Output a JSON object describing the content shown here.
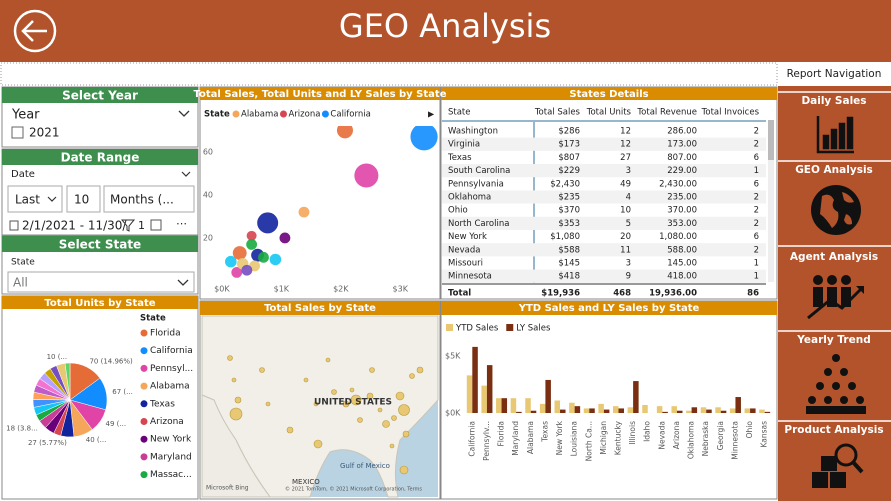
{
  "header": {
    "title": "GEO Analysis"
  },
  "navigation": {
    "title": "Report Navigation",
    "items": [
      "Daily Sales",
      "GEO Analysis",
      "Agent Analysis",
      "Yearly Trend",
      "Product Analysis"
    ]
  },
  "filters": {
    "year": {
      "title": "Select Year",
      "field": "Year",
      "option": "2021"
    },
    "date_range": {
      "title": "Date Range",
      "field": "Date",
      "mode": "Last",
      "count": "10",
      "unit": "Months (...",
      "range": "2/1/2021 - 11/30/",
      "filter_count": "1"
    },
    "state": {
      "title": "Select State",
      "field": "State",
      "value": "All"
    }
  },
  "map": {
    "title": "Total Sales by State",
    "labels": [
      "UNITED STATES",
      "MEXICO",
      "Gulf of Mexico"
    ],
    "credit": "Microsoft Bing",
    "copyright": "© 2021 TomTom, © 2021 Microsoft Corporation, Terms"
  },
  "table": {
    "title": "States Details",
    "columns": [
      "State",
      "Total Sales",
      "Total Units",
      "Total Revenue",
      "Total Invoices"
    ],
    "rows": [
      [
        "Washington",
        "$286",
        "12",
        "286.00",
        "2"
      ],
      [
        "Virginia",
        "$173",
        "12",
        "173.00",
        "2"
      ],
      [
        "Texas",
        "$807",
        "27",
        "807.00",
        "6"
      ],
      [
        "South Carolina",
        "$229",
        "3",
        "229.00",
        "1"
      ],
      [
        "Pennsylvania",
        "$2,430",
        "49",
        "2,430.00",
        "6"
      ],
      [
        "Oklahoma",
        "$235",
        "4",
        "235.00",
        "2"
      ],
      [
        "Ohio",
        "$370",
        "10",
        "370.00",
        "2"
      ],
      [
        "North Carolina",
        "$353",
        "5",
        "353.00",
        "2"
      ],
      [
        "New York",
        "$1,080",
        "20",
        "1,080.00",
        "6"
      ],
      [
        "Nevada",
        "$588",
        "11",
        "588.00",
        "2"
      ],
      [
        "Missouri",
        "$145",
        "3",
        "145.00",
        "1"
      ],
      [
        "Minnesota",
        "$418",
        "9",
        "418.00",
        "1"
      ]
    ],
    "total": [
      "Total",
      "$19,936",
      "468",
      "19,936.00",
      "86"
    ]
  },
  "chart_data": [
    {
      "type": "pie",
      "title": "Total Units by State",
      "legend_title": "State",
      "categories": [
        "Florida",
        "California",
        "Pennsyl...",
        "Alabama",
        "Texas",
        "Arizona",
        "New York",
        "Maryland",
        "Massac...",
        null,
        null,
        null,
        null,
        null,
        null,
        null,
        null,
        null,
        null
      ],
      "values": [
        70,
        67,
        49,
        40,
        27,
        15,
        20,
        18,
        14,
        16,
        16,
        15,
        15,
        15,
        15,
        14,
        14,
        18,
        10
      ],
      "value_labels": [
        "70 (14.96%)",
        "67 (...",
        "49 (...",
        "40 (...",
        "27 (5.77%)",
        null,
        null,
        "18 (3.8...",
        null,
        null,
        null,
        null,
        null,
        null,
        null,
        null,
        null,
        null,
        "10 (..."
      ],
      "colors": [
        "#e66c37",
        "#118dff",
        "#e044a7",
        "#f5a65a",
        "#12239e",
        "#d64550",
        "#6b007b",
        "#c83d95",
        "#1aab40",
        "#15c6f4",
        "#4092ff",
        "#ffa058",
        "#be5dc9",
        "#f472d0",
        "#b5a1ff",
        "#c4a200",
        "#744ec2",
        "#e8c872",
        "#5bd667"
      ]
    },
    {
      "type": "scatter",
      "title": "Total Sales, Total Units and LY Sales by State",
      "legend_title": "State",
      "xlim": [
        -0.2,
        3.5
      ],
      "ylim": [
        0,
        72
      ],
      "xticks": [
        {
          "value": 0,
          "label": "$0K"
        },
        {
          "value": 1,
          "label": "$1K"
        },
        {
          "value": 2,
          "label": "$2K"
        },
        {
          "value": 3,
          "label": "$3K"
        }
      ],
      "yticks": [
        20,
        40,
        60
      ],
      "series": [
        {
          "name": "Alabama",
          "color": "#f5a65a",
          "x": [
            1.38
          ],
          "values": [
            32
          ],
          "sizes": [
            0.3
          ]
        },
        {
          "name": "Arizona",
          "color": "#d64550",
          "x": [
            0.5
          ],
          "values": [
            21
          ],
          "sizes": [
            0.2
          ]
        },
        {
          "name": "California",
          "color": "#118dff",
          "x": [
            3.4
          ],
          "values": [
            67
          ],
          "sizes": [
            5.8
          ]
        },
        {
          "name": null,
          "color": "#e66c37",
          "x": [
            2.07,
            0.3
          ],
          "values": [
            70,
            13
          ],
          "sizes": [
            1.3,
            0.8
          ]
        },
        {
          "name": null,
          "color": "#e044a7",
          "x": [
            2.43,
            0.25
          ],
          "values": [
            49,
            4
          ],
          "sizes": [
            4.2,
            0.3
          ]
        },
        {
          "name": null,
          "color": "#12239e",
          "x": [
            0.77,
            0.6
          ],
          "values": [
            27,
            12
          ],
          "sizes": [
            2.9,
            0.6
          ]
        },
        {
          "name": null,
          "color": "#6b007b",
          "x": [
            1.06
          ],
          "values": [
            20
          ],
          "sizes": [
            0.3
          ]
        },
        {
          "name": null,
          "color": "#1aab40",
          "x": [
            0.5,
            0.7
          ],
          "values": [
            17,
            11
          ],
          "sizes": [
            0.3,
            0.3
          ]
        },
        {
          "name": null,
          "color": "#e8c872",
          "x": [
            0.35,
            0.55
          ],
          "values": [
            8,
            7
          ],
          "sizes": [
            0.4,
            0.3
          ]
        },
        {
          "name": null,
          "color": "#15c6f4",
          "x": [
            0.15,
            0.9
          ],
          "values": [
            9,
            10
          ],
          "sizes": [
            0.4,
            0.4
          ]
        },
        {
          "name": null,
          "color": "#744ec2",
          "x": [
            0.42
          ],
          "values": [
            5
          ],
          "sizes": [
            0.3
          ]
        }
      ]
    },
    {
      "type": "bar",
      "title": "YTD Sales and LY Sales by State",
      "categories": [
        "California",
        "Pennsylv...",
        "Florida",
        "Maryland",
        "Alabama",
        "Texas",
        "New York",
        "Louisiana",
        "North Ca...",
        "Michigan",
        "Kentucky",
        "Illinois",
        "Idaho",
        "Nevada",
        "Arizona",
        "Oklahoma",
        "Nebraska",
        "Georgia",
        "Minnesota",
        "Ohio",
        "Kansas"
      ],
      "ylim": [
        0,
        6
      ],
      "yticks": [
        {
          "value": 0,
          "label": "$0K"
        },
        {
          "value": 5,
          "label": "$5K"
        }
      ],
      "series": [
        {
          "name": "YTD Sales",
          "color": "#e8c872",
          "values": [
            3.3,
            2.4,
            1.3,
            1.3,
            1.3,
            0.8,
            1.1,
            0.9,
            0.4,
            0.8,
            0.6,
            0.5,
            0.7,
            0.6,
            0.6,
            0.2,
            0.5,
            0.5,
            0.4,
            0.4,
            0.3
          ]
        },
        {
          "name": "LY Sales",
          "color": "#7a2e12",
          "values": [
            5.8,
            4.2,
            1.3,
            0.1,
            0.2,
            2.9,
            0.3,
            0.6,
            0.4,
            0.3,
            0.4,
            2.8,
            0,
            0.1,
            0.2,
            0.5,
            0.3,
            0.2,
            1.4,
            0.4,
            0.1
          ]
        }
      ]
    }
  ]
}
